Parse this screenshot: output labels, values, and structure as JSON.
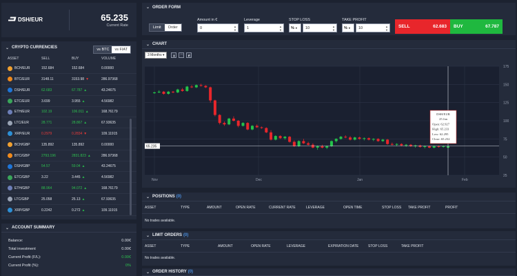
{
  "rate_box": {
    "pair": "DSH/EUR",
    "rate": "65.235",
    "rate_label": "Current Rate"
  },
  "crypto": {
    "title": "CRYPTO CURRENCIES",
    "toggle": [
      "vs BTC",
      "vs FIAT"
    ],
    "columns": [
      "ASSET",
      "SELL",
      "BUY",
      "VOLUME"
    ],
    "rows": [
      {
        "asset": "BCH/EUR",
        "sell": "152.684",
        "buy": "152.684",
        "volume": "0.00000",
        "sell_color": "",
        "buy_color": "",
        "trend": "",
        "coin": "#f0a030"
      },
      {
        "asset": "BTC/EUR",
        "sell": "3148.11",
        "buy": "3153.98",
        "volume": "286.97368",
        "sell_color": "",
        "buy_color": "",
        "trend": "down",
        "coin": "#f08a1c"
      },
      {
        "asset": "DSH/EUR",
        "sell": "62.683",
        "buy": "67.787",
        "volume": "43.24675",
        "sell_color": "green",
        "buy_color": "green",
        "trend": "up",
        "coin": "#1e75d8"
      },
      {
        "asset": "ETC/EUR",
        "sell": "3.699",
        "buy": "3.955",
        "volume": "4.56982",
        "sell_color": "",
        "buy_color": "",
        "trend": "up",
        "coin": "#3aa55a"
      },
      {
        "asset": "ETH/EUR",
        "sell": "102.19",
        "buy": "106.011",
        "volume": "168.76179",
        "sell_color": "green",
        "buy_color": "green",
        "trend": "up",
        "coin": "#6d7fb8"
      },
      {
        "asset": "LTC/EUR",
        "sell": "28.771",
        "buy": "28.867",
        "volume": "67.93635",
        "sell_color": "green",
        "buy_color": "green",
        "trend": "up",
        "coin": "#9aa4b5"
      },
      {
        "asset": "XRP/EUR",
        "sell": "0.2979",
        "buy": "0.2834",
        "volume": "109.11915",
        "sell_color": "red",
        "buy_color": "red",
        "trend": "down",
        "coin": "#2d8fd5"
      },
      {
        "asset": "BCH/GBP",
        "sell": "135.892",
        "buy": "135.892",
        "volume": "0.00000",
        "sell_color": "",
        "buy_color": "",
        "trend": "",
        "coin": "#f0a030"
      },
      {
        "asset": "BTC/GBP",
        "sell": "2793.196",
        "buy": "2831.823",
        "volume": "286.97368",
        "sell_color": "green",
        "buy_color": "green",
        "trend": "up",
        "coin": "#f08a1c"
      },
      {
        "asset": "DSH/GBP",
        "sell": "54.57",
        "buy": "59.04",
        "volume": "43.24675",
        "sell_color": "green",
        "buy_color": "green",
        "trend": "up",
        "coin": "#1e75d8"
      },
      {
        "asset": "ETC/GBP",
        "sell": "3.22",
        "buy": "3.445",
        "volume": "4.56982",
        "sell_color": "",
        "buy_color": "",
        "trend": "up",
        "coin": "#3aa55a"
      },
      {
        "asset": "ETH/GBP",
        "sell": "88.964",
        "buy": "94.072",
        "volume": "168.76179",
        "sell_color": "green",
        "buy_color": "green",
        "trend": "up",
        "coin": "#6d7fb8"
      },
      {
        "asset": "LTC/GBP",
        "sell": "25.058",
        "buy": "25.13",
        "volume": "67.93635",
        "sell_color": "",
        "buy_color": "",
        "trend": "up",
        "coin": "#9aa4b5"
      },
      {
        "asset": "XRP/GBP",
        "sell": "0.2242",
        "buy": "0.272",
        "volume": "109.11915",
        "sell_color": "",
        "buy_color": "",
        "trend": "up",
        "coin": "#2d8fd5"
      }
    ]
  },
  "account": {
    "title": "ACCOUNT SUMMARY",
    "rows": [
      {
        "label": "Balance:",
        "value": "0.00€",
        "color": ""
      },
      {
        "label": "Total investment",
        "value": "0.00€",
        "color": ""
      },
      {
        "label": "Current Profit (F/L):",
        "value": "0.00€",
        "color": "green"
      },
      {
        "label": "Current Profit (%):",
        "value": "0%",
        "color": "green"
      }
    ]
  },
  "order_form": {
    "title": "ORDER FORM",
    "type_options": [
      "Limit",
      "Order"
    ],
    "amount_label": "Amount in €",
    "amount_value": "0",
    "leverage_label": "Leverage",
    "leverage_value": "1",
    "stop_loss_label": "STOP LOSS",
    "stop_loss_unit": "%",
    "stop_loss_value": "10",
    "take_profit_label": "TAKE PROFIT",
    "take_profit_unit": "%",
    "take_profit_value": "10",
    "sell_label": "SELL",
    "sell_value": "62.683",
    "buy_label": "BUY",
    "buy_value": "67.787"
  },
  "chart": {
    "title": "CHART",
    "range": "3 Months",
    "current_price_tag": "65.235",
    "tooltip": {
      "pair": "DSH/EUR",
      "date": "25 Jan",
      "open": "Open: 62.927",
      "high": "High: 65.233",
      "low": "Low: 62.295",
      "close": "Close: 65.232"
    }
  },
  "chart_data": {
    "type": "candlestick",
    "x_ticks": [
      "Nov",
      "Dec",
      "Jan",
      "Feb"
    ],
    "y_ticks": [
      25,
      50,
      75,
      100,
      125,
      150,
      175
    ],
    "ylim": [
      25,
      175
    ],
    "candles": [
      [
        138,
        140,
        137,
        139
      ],
      [
        139,
        142,
        138,
        140
      ],
      [
        140,
        141,
        136,
        137
      ],
      [
        137,
        141,
        136,
        140
      ],
      [
        140,
        141,
        138,
        139
      ],
      [
        139,
        144,
        138,
        143
      ],
      [
        143,
        145,
        140,
        141
      ],
      [
        141,
        148,
        140,
        147
      ],
      [
        147,
        149,
        145,
        146
      ],
      [
        146,
        150,
        145,
        149
      ],
      [
        149,
        151,
        147,
        148
      ],
      [
        148,
        149,
        145,
        146
      ],
      [
        146,
        147,
        125,
        128
      ],
      [
        128,
        129,
        106,
        108
      ],
      [
        108,
        109,
        95,
        97
      ],
      [
        97,
        99,
        93,
        95
      ],
      [
        95,
        104,
        94,
        103
      ],
      [
        103,
        106,
        99,
        100
      ],
      [
        100,
        101,
        91,
        93
      ],
      [
        93,
        98,
        92,
        97
      ],
      [
        97,
        98,
        87,
        88
      ],
      [
        88,
        94,
        87,
        93
      ],
      [
        93,
        95,
        90,
        91
      ],
      [
        91,
        92,
        89,
        90
      ],
      [
        90,
        91,
        83,
        84
      ],
      [
        84,
        87,
        73,
        74
      ],
      [
        74,
        80,
        73,
        79
      ],
      [
        79,
        80,
        75,
        76
      ],
      [
        76,
        79,
        74,
        78
      ],
      [
        78,
        79,
        70,
        71
      ],
      [
        71,
        73,
        64,
        65
      ],
      [
        65,
        73,
        64,
        72
      ],
      [
        72,
        75,
        68,
        69
      ],
      [
        69,
        71,
        66,
        67
      ],
      [
        67,
        69,
        62,
        63
      ],
      [
        63,
        66,
        60,
        65
      ],
      [
        65,
        67,
        62,
        63
      ],
      [
        63,
        66,
        61,
        65
      ],
      [
        65,
        73,
        64,
        72
      ],
      [
        72,
        76,
        70,
        75
      ],
      [
        75,
        79,
        74,
        78
      ],
      [
        78,
        80,
        76,
        77
      ],
      [
        77,
        79,
        73,
        74
      ],
      [
        74,
        78,
        73,
        77
      ],
      [
        77,
        78,
        74,
        75
      ],
      [
        75,
        77,
        73,
        76
      ],
      [
        76,
        77,
        73,
        74
      ],
      [
        74,
        76,
        72,
        75
      ],
      [
        75,
        76,
        71,
        72
      ],
      [
        72,
        75,
        71,
        74
      ],
      [
        74,
        75,
        67,
        68
      ],
      [
        68,
        70,
        66,
        67
      ],
      [
        67,
        69,
        65,
        68
      ],
      [
        68,
        69,
        65,
        66
      ],
      [
        66,
        68,
        64,
        67
      ],
      [
        67,
        68,
        64,
        65
      ],
      [
        65,
        67,
        63,
        66
      ],
      [
        66,
        67,
        63,
        64
      ],
      [
        64,
        66,
        62,
        65
      ],
      [
        65,
        66,
        62,
        63
      ],
      [
        63,
        66,
        62,
        65
      ],
      [
        65,
        66,
        63,
        64
      ],
      [
        64,
        66,
        63,
        65
      ],
      [
        63,
        66,
        62,
        65
      ]
    ]
  },
  "positions": {
    "title": "POSITIONS",
    "count": "(0)",
    "columns": [
      "ASSET",
      "TYPE",
      "AMOUNT",
      "OPEN RATE",
      "CURRENT RATE",
      "LEVERAGE",
      "OPEN TIME",
      "STOP LOSS",
      "TAKE PROFIT",
      "PROFIT"
    ],
    "empty": "No trades available."
  },
  "limit_orders": {
    "title": "LIMIT ORDERS",
    "count": "(0)",
    "columns": [
      "ASSET",
      "TYPE",
      "AMOUNT",
      "OPEN RATE",
      "LEVERAGE",
      "EXPIRATION DATE",
      "STOP LOSS",
      "TAKE PROFIT"
    ],
    "empty": "No trades available."
  },
  "order_history": {
    "title": "ORDER HISTORY",
    "count": "(0)"
  }
}
